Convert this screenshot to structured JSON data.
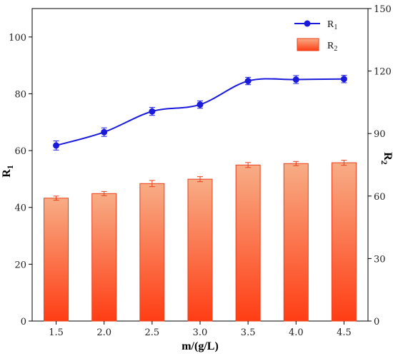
{
  "chart_data": {
    "type": "bar+line",
    "categories": [
      "1.5",
      "2.0",
      "2.5",
      "3.0",
      "3.5",
      "4.0",
      "4.5"
    ],
    "xlabel": "m/(g/L)",
    "y_left": {
      "label_main": "R",
      "label_sub": "1",
      "ylim": [
        0,
        110
      ],
      "ticks": [
        "0",
        "20",
        "40",
        "60",
        "80",
        "100"
      ]
    },
    "y_right": {
      "label_main": "R",
      "label_sub": "2",
      "ylim": [
        0,
        150
      ],
      "ticks": [
        "0",
        "30",
        "60",
        "90",
        "120",
        "150"
      ]
    },
    "grid": false,
    "legend_position": "top-right",
    "series": [
      {
        "name_main": "R",
        "name_sub": "1",
        "kind": "line",
        "axis": "left",
        "smooth": true,
        "color": "#1a1adb",
        "values": [
          61.8,
          66.5,
          73.8,
          76.2,
          84.5,
          85.0,
          85.2
        ],
        "errors": [
          1.6,
          1.5,
          1.4,
          1.3,
          1.3,
          1.4,
          1.3
        ]
      },
      {
        "name_main": "R",
        "name_sub": "2",
        "kind": "bar",
        "axis": "right",
        "color_top": "#f7ad86",
        "color_bottom": "#ff3d14",
        "edge_color": "#e8401c",
        "values": [
          59.0,
          61.2,
          66.0,
          68.1,
          74.9,
          75.6,
          76.0
        ],
        "errors": [
          1.0,
          1.0,
          1.5,
          1.2,
          1.2,
          1.0,
          1.2
        ]
      }
    ]
  }
}
